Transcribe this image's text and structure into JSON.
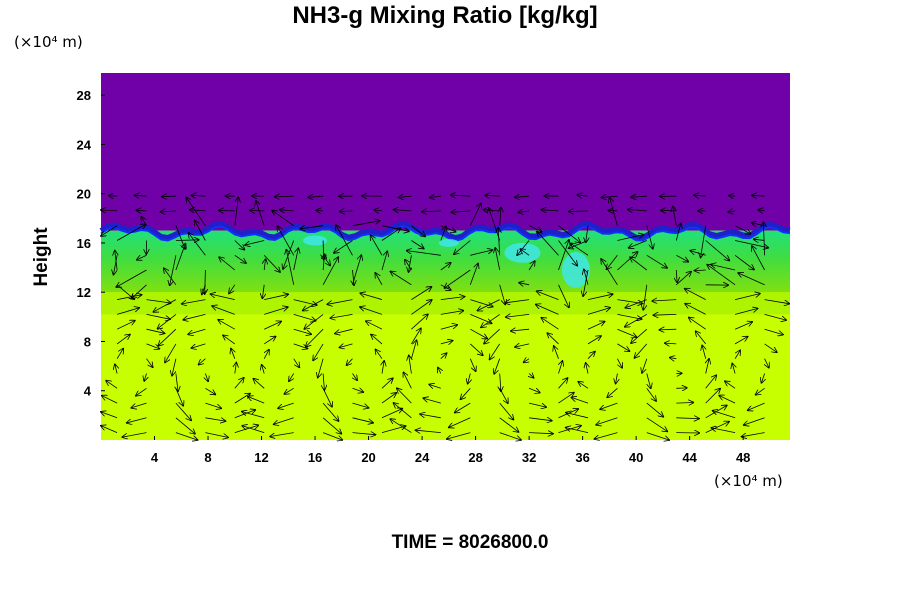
{
  "chart_data": {
    "type": "heatmap",
    "title": "NH3-g Mixing Ratio [kg/kg]",
    "ylabel": "Height",
    "x_unit": "(×10⁴ m)",
    "y_unit": "(×10⁴ m)",
    "time_label": "TIME = 8026800.0",
    "xlim": [
      0,
      51.5
    ],
    "ylim": [
      0,
      29.8
    ],
    "x_ticks": [
      4,
      8,
      12,
      16,
      20,
      24,
      28,
      32,
      36,
      40,
      44,
      48
    ],
    "y_ticks": [
      4,
      8,
      12,
      16,
      20,
      24,
      28
    ],
    "grid": false,
    "colors": {
      "upper_layer": "#7000a8",
      "interface_blue": "#1030ff",
      "mixed_layer_green": "#20e07a",
      "mixed_layer_cyan": "#40e8e8",
      "transition_green": "#70e020",
      "lower_layer": "#c8ff00",
      "vectors": "#000000"
    },
    "layers": [
      {
        "name": "upper",
        "y_from": 17,
        "y_to": 29.8,
        "color": "#7000a8"
      },
      {
        "name": "mixed",
        "y_from": 12,
        "y_to": 17,
        "color": "#20e07a"
      },
      {
        "name": "lower",
        "y_from": 0,
        "y_to": 12,
        "color": "#c8ff00"
      }
    ],
    "overlay": "wind vector arrows"
  }
}
